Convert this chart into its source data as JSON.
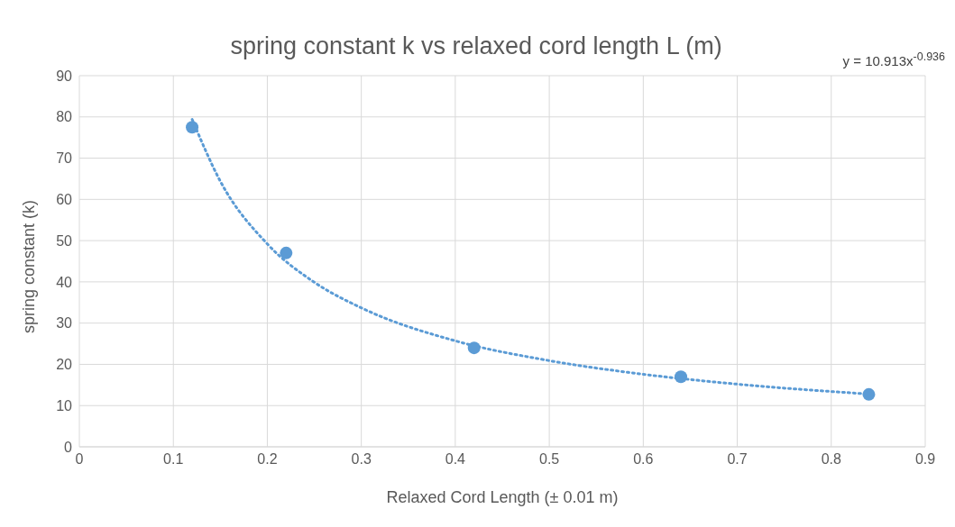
{
  "chart_data": {
    "type": "scatter",
    "title": "spring constant k vs relaxed cord length L (m)",
    "xlabel": "Relaxed Cord Length (± 0.01 m)",
    "ylabel": "spring constant  (k)",
    "annotations": [
      "y = 10.913x$^{-0.936}$"
    ],
    "series": [
      {
        "color": "#5b9bd5",
        "marker": "circle",
        "x": [
          0.12,
          0.22,
          0.42,
          0.64,
          0.84
        ],
        "values": [
          77.5,
          47,
          24,
          17,
          12.7
        ]
      },
      {
        "type": "line",
        "color": "#5b9bd5",
        "marker": "none",
        "line_style": "dotted",
        "x": [
          0.12,
          0.15,
          0.2,
          0.25,
          0.3,
          0.4,
          0.5,
          0.6,
          0.7,
          0.84
        ],
        "values": [
          79.4,
          64.4,
          49.2,
          39.9,
          33.7,
          25.7,
          20.9,
          17.6,
          15.2,
          12.8
        ]
      }
    ],
    "xlim": [
      0,
      0.9
    ],
    "xticks": [
      0,
      0.1,
      0.2,
      0.3,
      0.4,
      0.5,
      0.6,
      0.7,
      0.8,
      0.9
    ],
    "ylim": [
      0,
      90
    ],
    "yticks": [
      0,
      10,
      20,
      30,
      40,
      50,
      60,
      70,
      80,
      90
    ],
    "grid": true
  }
}
